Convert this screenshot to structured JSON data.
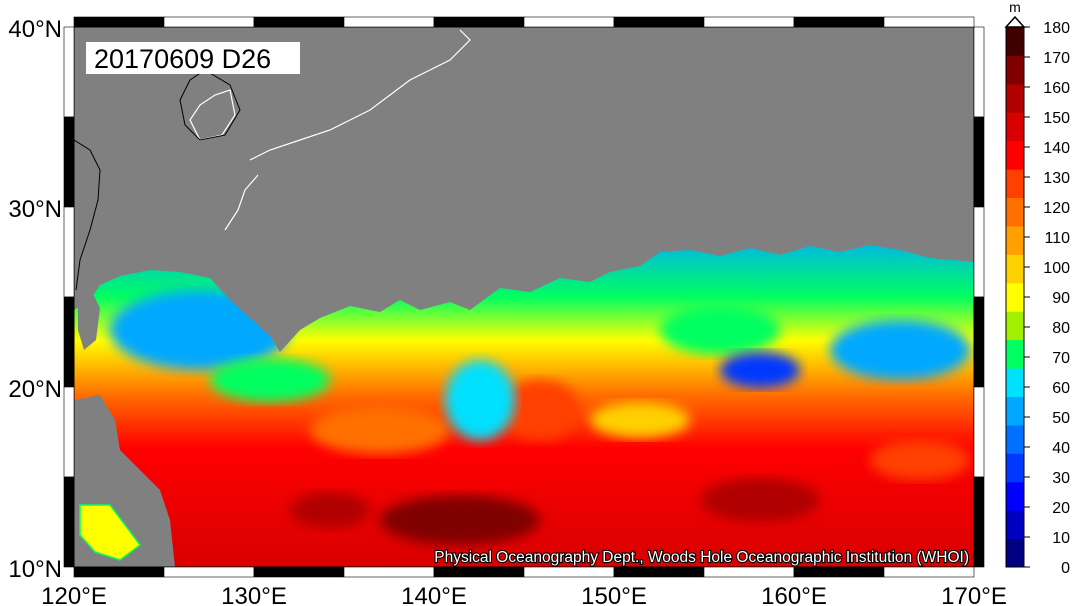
{
  "map": {
    "date_label": "20170609 D26",
    "credit": "Physical Oceanography Dept., Woods Hole Oceanographic Institution (WHOI)",
    "lat_labels": [
      "40°N",
      "30°N",
      "20°N",
      "10°N"
    ],
    "lon_labels": [
      "120°E",
      "130°E",
      "140°E",
      "150°E",
      "160°E",
      "170°E"
    ],
    "lat_range": [
      10,
      40
    ],
    "lon_range": [
      120,
      170
    ],
    "land_color": "#808080"
  },
  "colorbar": {
    "unit": "m",
    "ticks": [
      "0",
      "10",
      "20",
      "30",
      "40",
      "50",
      "60",
      "70",
      "80",
      "90",
      "100",
      "110",
      "120",
      "130",
      "140",
      "150",
      "160",
      "170",
      "180"
    ],
    "colors": [
      "#000080",
      "#0000c0",
      "#0000ff",
      "#0038ff",
      "#0070ff",
      "#00a8ff",
      "#00e0ff",
      "#00ff60",
      "#a0f000",
      "#ffff00",
      "#ffd000",
      "#ffa000",
      "#ff7000",
      "#ff4000",
      "#ff0000",
      "#d80000",
      "#b00000",
      "#800000",
      "#400000"
    ]
  }
}
